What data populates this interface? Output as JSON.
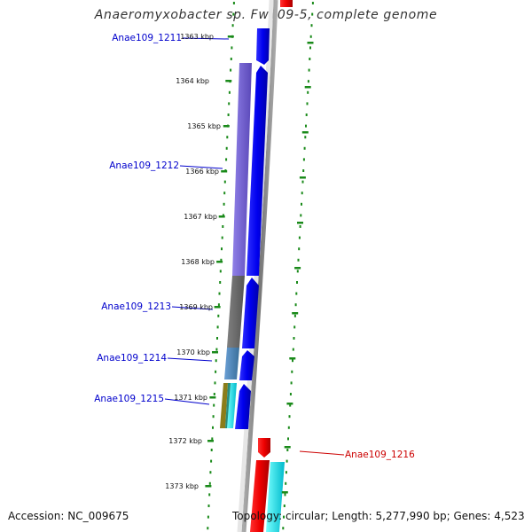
{
  "title": "Anaeromyxobacter sp. Fw109-5, complete genome",
  "footer": {
    "accession": "Accession: NC_009675",
    "summary": "Topology: circular; Length: 5,277,990 bp; Genes: 4,523"
  },
  "scale_ticks": [
    "1363 kbp",
    "1364 kbp",
    "1365 kbp",
    "1366 kbp",
    "1367 kbp",
    "1368 kbp",
    "1369 kbp",
    "1370 kbp",
    "1371 kbp",
    "1372 kbp",
    "1373 kbp"
  ],
  "gene_labels": [
    {
      "id": "Anae109_1211",
      "color": "#0000cc"
    },
    {
      "id": "Anae109_1212",
      "color": "#0000cc"
    },
    {
      "id": "Anae109_1213",
      "color": "#0000cc"
    },
    {
      "id": "Anae109_1214",
      "color": "#0000cc"
    },
    {
      "id": "Anae109_1215",
      "color": "#0000cc"
    },
    {
      "id": "Anae109_1216",
      "color": "#cc0000"
    }
  ],
  "colors": {
    "cds_forward": "#0000ee",
    "cds_reverse": "#ee0000",
    "tick_green": "#1a8a1a",
    "backbone": "#888888",
    "cog_purple": "#7b68d8",
    "cog_gray": "#666666",
    "cog_steelblue": "#4a7fb5",
    "cog_cyan": "#00e5ee"
  }
}
